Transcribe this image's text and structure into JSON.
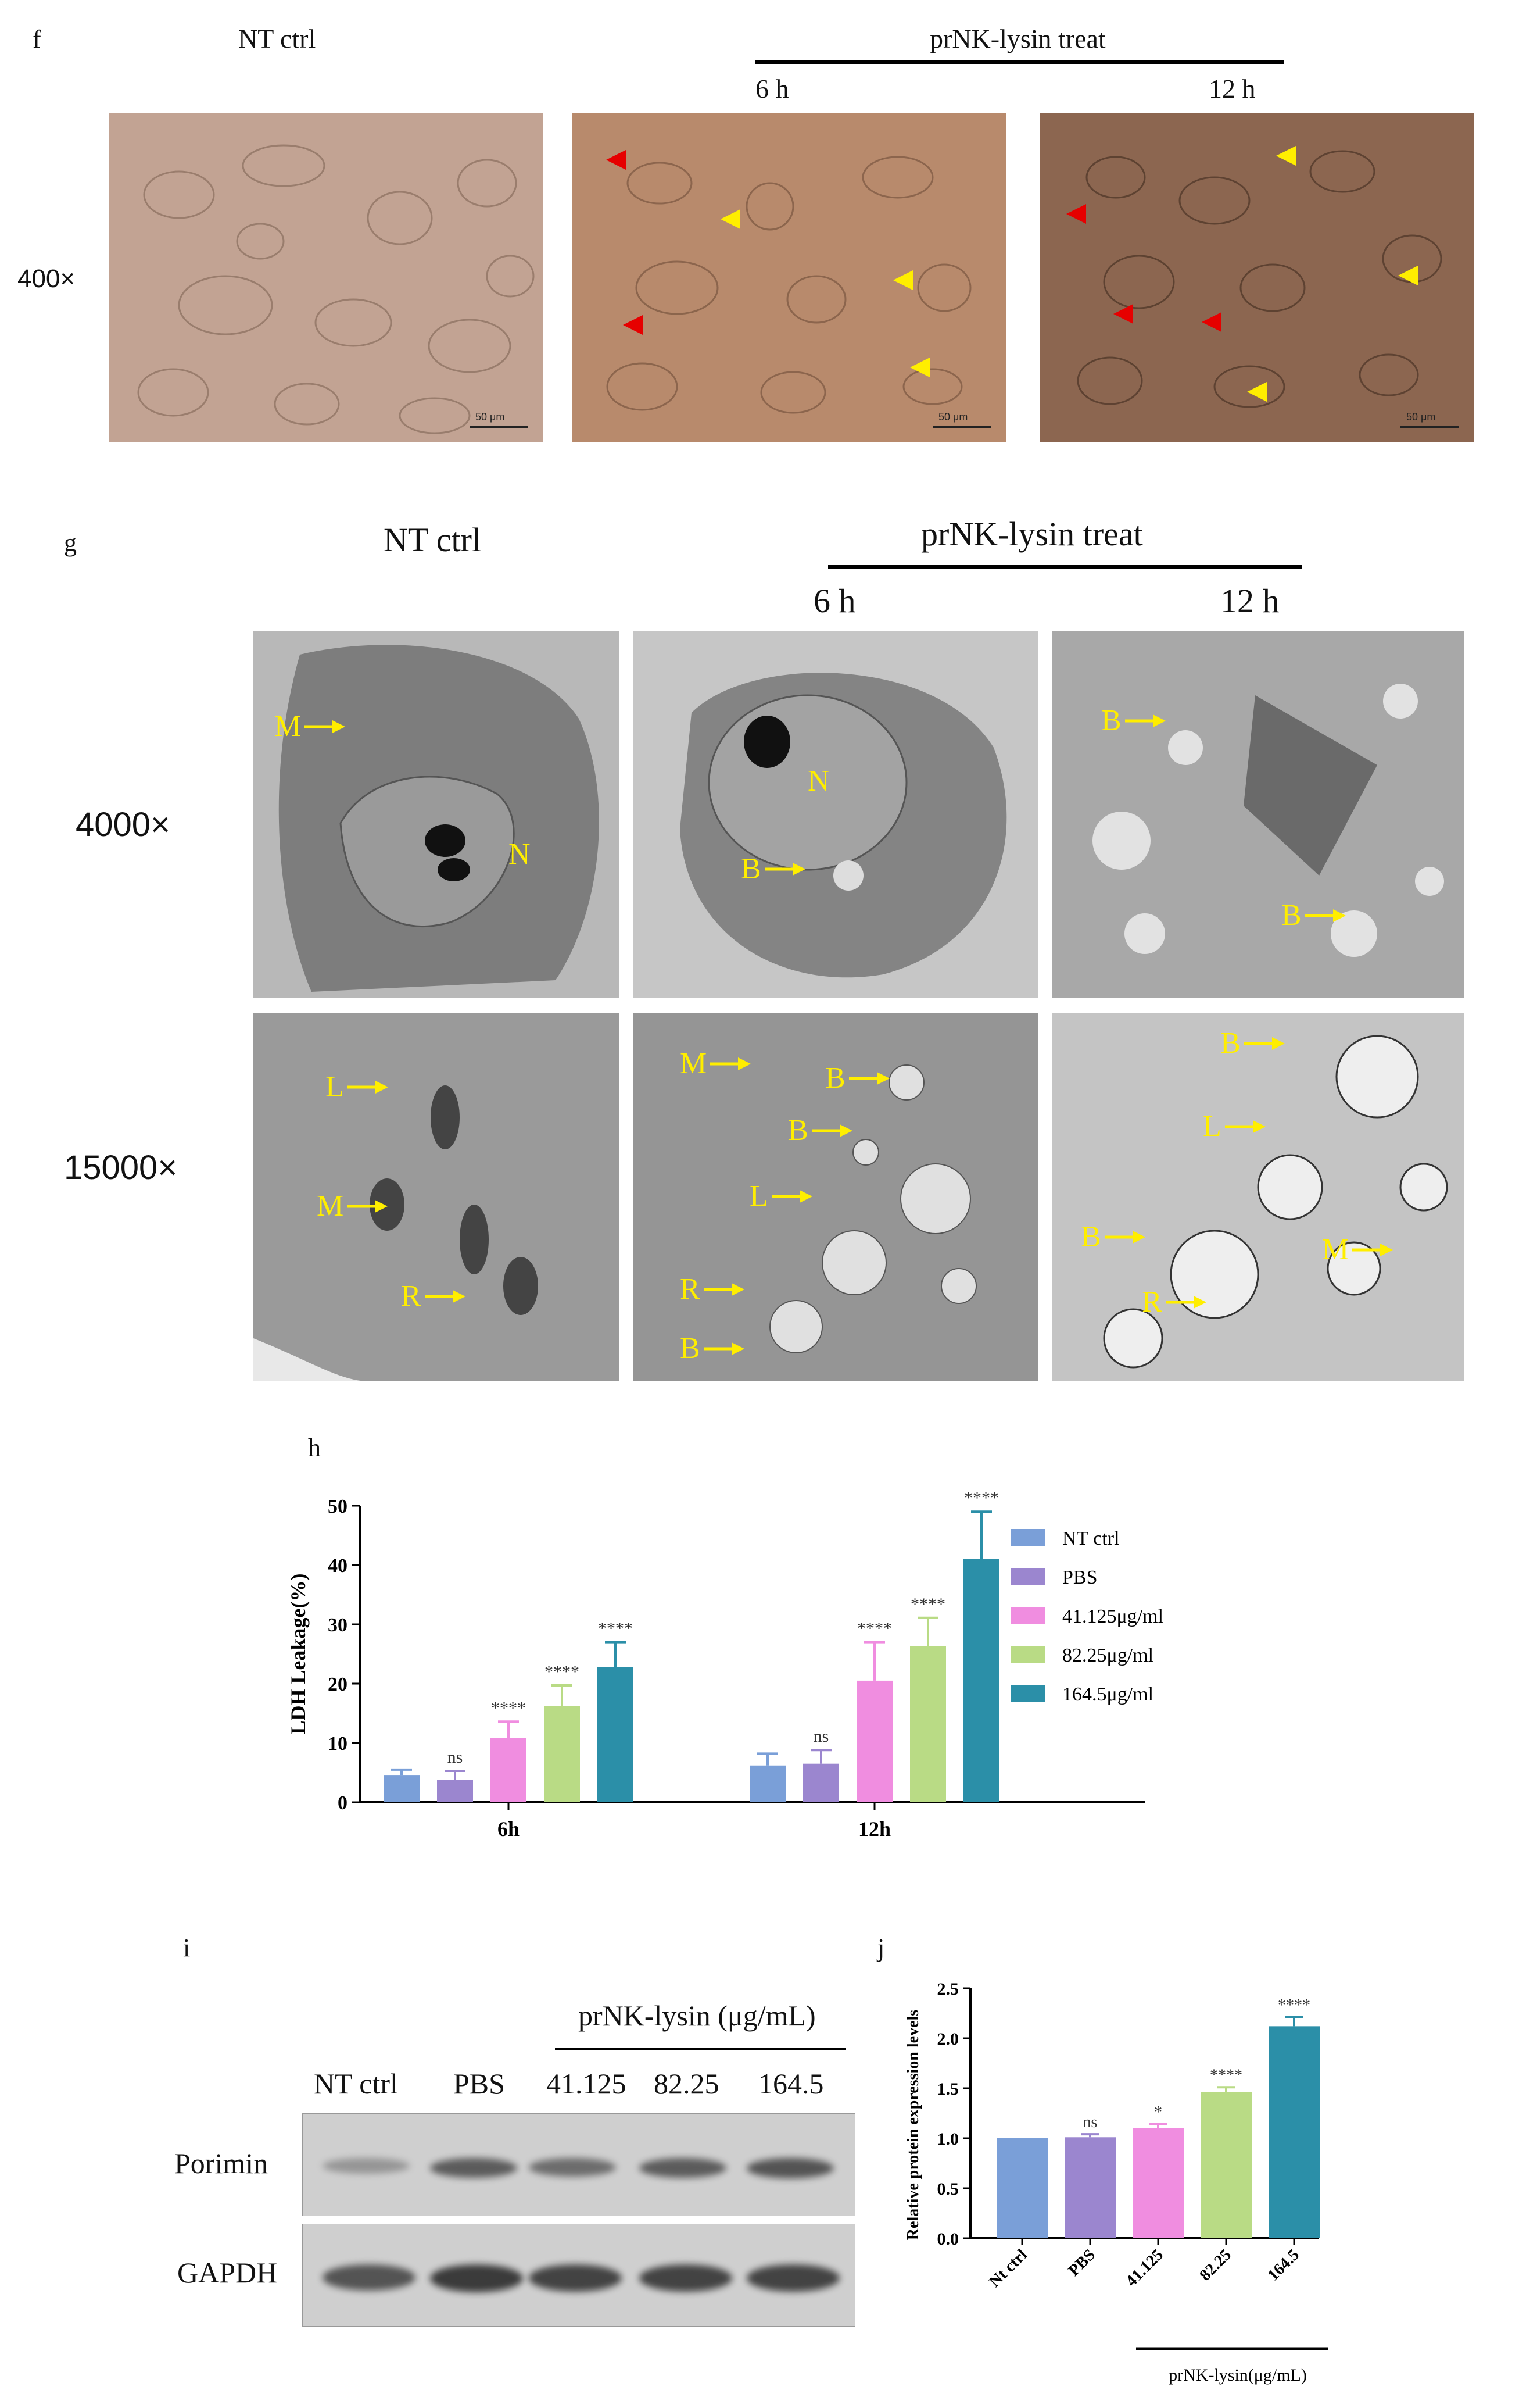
{
  "panel_f": {
    "letter": "f",
    "ctrl_label": "NT ctrl",
    "treat_label": "prNK-lysin treat",
    "time_6": "6 h",
    "time_12": "12 h",
    "magnification": "400×",
    "scale": "50 μm",
    "arrow_colors": {
      "necrotic": "#e60000",
      "morphologic": "#ffee00"
    }
  },
  "panel_g": {
    "letter": "g",
    "ctrl_label": "NT ctrl",
    "treat_label": "prNK-lysin treat",
    "time_6": "6 h",
    "time_12": "12 h",
    "mag_low": "4000×",
    "mag_high": "15000×",
    "labels": {
      "M": "M",
      "N": "N",
      "B": "B",
      "L": "L",
      "R": "R"
    }
  },
  "panel_h": {
    "letter": "h",
    "chart_data": {
      "type": "bar",
      "categories": [
        "6h",
        "12h"
      ],
      "ylabel": "LDH Leakage(%)",
      "ylim": [
        0,
        50
      ],
      "yticks": [
        0,
        10,
        20,
        30,
        40,
        50
      ],
      "series": [
        {
          "name": "NT ctrl",
          "color": "#7a9fd8",
          "values": [
            4.5,
            6.2
          ],
          "errors": [
            1.0,
            2.0
          ],
          "sig": [
            "",
            ""
          ]
        },
        {
          "name": "PBS",
          "color": "#9b86cf",
          "values": [
            3.8,
            6.5
          ],
          "errors": [
            1.5,
            2.3
          ],
          "sig": [
            "ns",
            "ns"
          ]
        },
        {
          "name": "41.125μg/ml",
          "color": "#f08de0",
          "values": [
            10.8,
            20.5
          ],
          "errors": [
            2.8,
            6.5
          ],
          "sig": [
            "****",
            "****"
          ]
        },
        {
          "name": "82.25μg/ml",
          "color": "#b9db85",
          "values": [
            16.2,
            26.3
          ],
          "errors": [
            3.5,
            4.8
          ],
          "sig": [
            "****",
            "****"
          ]
        },
        {
          "name": "164.5μg/ml",
          "color": "#2b8fa8",
          "values": [
            22.8,
            41.0
          ],
          "errors": [
            4.2,
            8.0
          ],
          "sig": [
            "****",
            "****"
          ]
        }
      ]
    }
  },
  "panel_i": {
    "letter": "i",
    "treat_header": "prNK-lysin (μg/mL)",
    "lanes": [
      "NT ctrl",
      "PBS",
      "41.125",
      "82.25",
      "164.5"
    ],
    "rows": [
      "Porimin",
      "GAPDH"
    ],
    "porimin_intensity": [
      0.35,
      0.7,
      0.6,
      0.7,
      0.75
    ],
    "gapdh_intensity": [
      0.75,
      0.9,
      0.85,
      0.85,
      0.85
    ]
  },
  "panel_j": {
    "letter": "j",
    "chart_data": {
      "type": "bar",
      "categories": [
        "Nt ctrl",
        "PBS",
        "41.125",
        "82.25",
        "164.5"
      ],
      "values": [
        1.0,
        1.01,
        1.1,
        1.46,
        2.12
      ],
      "errors": [
        0.0,
        0.03,
        0.04,
        0.05,
        0.09
      ],
      "colors": [
        "#7a9fd8",
        "#9b86cf",
        "#f08de0",
        "#b9db85",
        "#2b8fa8"
      ],
      "sig": [
        "",
        "ns",
        "*",
        "****",
        "****"
      ],
      "ylabel": "Relative protein expression levels",
      "ylim": [
        0,
        2.5
      ],
      "yticks": [
        0.0,
        0.5,
        1.0,
        1.5,
        2.0,
        2.5
      ],
      "xgroup_label": "prNK-lysin(μg/mL)"
    }
  }
}
